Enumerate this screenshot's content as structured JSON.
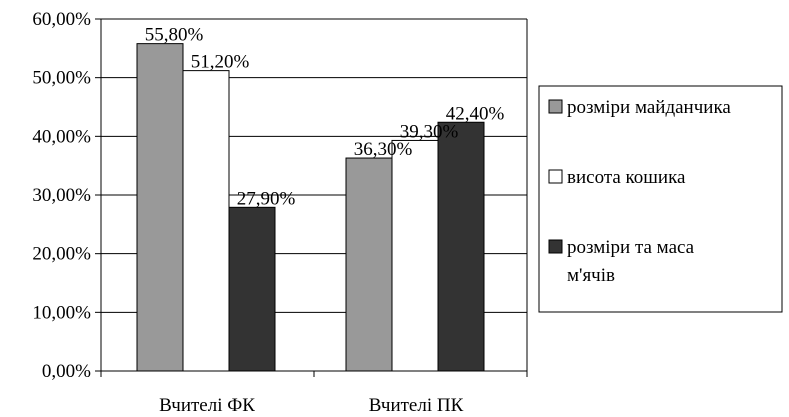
{
  "chart_data": {
    "type": "bar",
    "title": "",
    "xlabel": "",
    "ylabel": "",
    "categories": [
      "Вчителі ФК",
      "Вчителі ПК"
    ],
    "series": [
      {
        "name": "розміри майданчика",
        "color": "#999999",
        "values": [
          55.8,
          36.3
        ],
        "labels": [
          "55,80%",
          "36,30%"
        ]
      },
      {
        "name": "висота кошика",
        "color": "#ffffff",
        "values": [
          51.2,
          39.3
        ],
        "labels": [
          "51,20%",
          "39,30%"
        ]
      },
      {
        "name": "розміри та маса м'ячів",
        "name_lines": [
          "розміри та маса",
          "м'ячів"
        ],
        "color": "#333333",
        "values": [
          27.9,
          42.4
        ],
        "labels": [
          "27,90%",
          "42,40%"
        ]
      }
    ],
    "ylim": [
      0,
      60
    ],
    "yticks": [
      0,
      10,
      20,
      30,
      40,
      50,
      60
    ],
    "ytick_labels": [
      "0,00%",
      "10,00%",
      "20,00%",
      "30,00%",
      "40,00%",
      "50,00%",
      "60,00%"
    ],
    "grid": true,
    "legend": "right"
  }
}
